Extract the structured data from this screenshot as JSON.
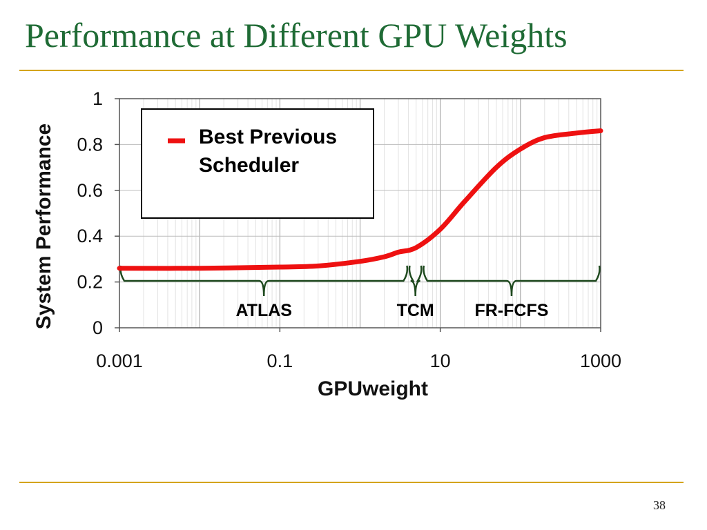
{
  "slide": {
    "title": "Performance at Different GPU Weights",
    "page_number": "38",
    "accent_color": "#d4a41c",
    "title_color": "#1f6b35"
  },
  "chart_data": {
    "type": "line",
    "xscale": "log",
    "xlim": [
      0.001,
      1000
    ],
    "ylim": [
      0,
      1
    ],
    "xlabel": "GPUweight",
    "ylabel": "System Performance",
    "xticks": [
      "0.001",
      "0.1",
      "10",
      "1000"
    ],
    "yticks": [
      "0",
      "0.2",
      "0.4",
      "0.6",
      "0.8",
      "1"
    ],
    "grid": true,
    "legend_position": "top-left",
    "series": [
      {
        "name": "Best Previous Scheduler",
        "color": "#ee1111",
        "x": [
          0.001,
          0.01,
          0.1,
          0.3,
          1,
          2,
          3,
          5,
          10,
          20,
          50,
          100,
          200,
          500,
          1000
        ],
        "y": [
          0.26,
          0.26,
          0.265,
          0.27,
          0.29,
          0.31,
          0.33,
          0.35,
          0.43,
          0.55,
          0.7,
          0.78,
          0.83,
          0.85,
          0.86
        ]
      }
    ],
    "ranges": [
      {
        "label": "ATLAS",
        "from": 0.001,
        "to": 4
      },
      {
        "label": "TCM",
        "from": 4,
        "to": 6
      },
      {
        "label": "FR-FCFS",
        "from": 6,
        "to": 1000
      }
    ]
  }
}
